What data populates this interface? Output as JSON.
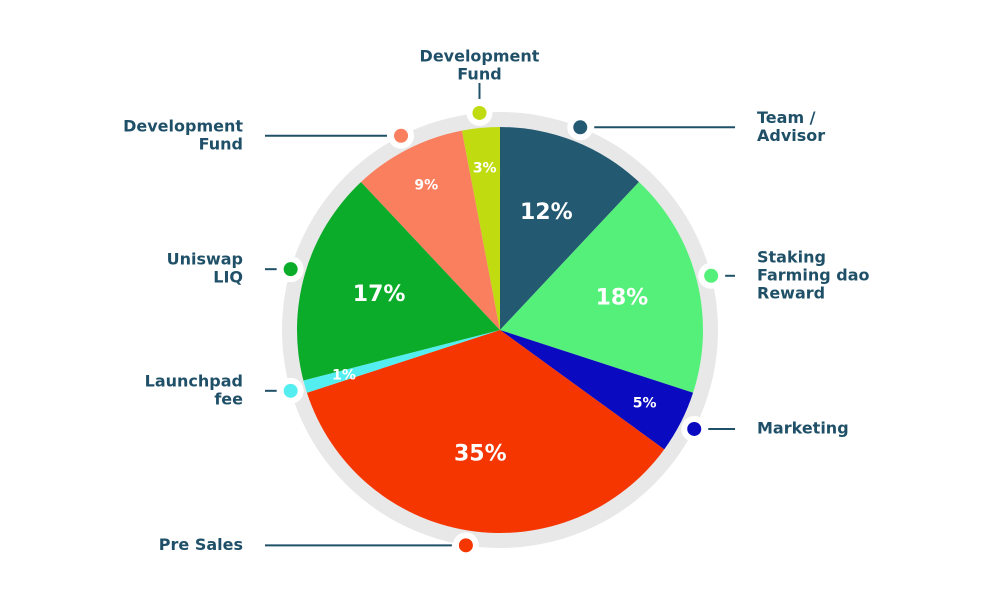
{
  "chart_data": {
    "type": "pie",
    "categories": [
      [
        "Team /",
        "Advisor"
      ],
      [
        "Staking",
        "Farming dao",
        "Reward"
      ],
      [
        "Marketing"
      ],
      [
        "Pre Sales"
      ],
      [
        "Launchpad",
        "fee"
      ],
      [
        "Uniswap",
        "LIQ"
      ],
      [
        "Development",
        "Fund"
      ],
      [
        "Development",
        "Fund"
      ]
    ],
    "values": [
      12,
      18,
      5,
      35,
      1,
      17,
      9,
      3
    ],
    "value_labels": [
      "12%",
      "18%",
      "5%",
      "35%",
      "1%",
      "17%",
      "9%",
      "3%"
    ],
    "colors": [
      "#235a72",
      "#55f07a",
      "#0a0ac0",
      "#f53600",
      "#55eef0",
      "#0aac2a",
      "#fa7f5f",
      "#c0dc10"
    ]
  }
}
